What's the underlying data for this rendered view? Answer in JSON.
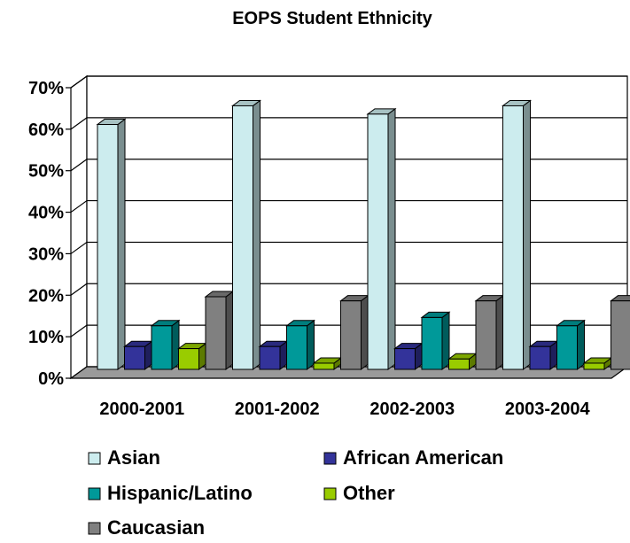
{
  "chart_data": {
    "type": "bar",
    "title": "EOPS Student Ethnicity",
    "categories": [
      "2000-2001",
      "2001-2002",
      "2002-2003",
      "2003-2004"
    ],
    "ylim": [
      0,
      70
    ],
    "yticks": [
      "0%",
      "10%",
      "20%",
      "30%",
      "40%",
      "50%",
      "60%",
      "70%"
    ],
    "grid": true,
    "three_d": true,
    "legend_position": "bottom",
    "series": [
      {
        "name": "Asian",
        "color": "#CCECEE",
        "values": [
          59,
          63.5,
          61.5,
          63.5
        ]
      },
      {
        "name": "African American",
        "color": "#33339A",
        "values": [
          5.5,
          5.5,
          5,
          5.5
        ]
      },
      {
        "name": "Hispanic/Latino",
        "color": "#009999",
        "values": [
          10.5,
          10.5,
          12.5,
          10.5
        ]
      },
      {
        "name": "Other",
        "color": "#99CC00",
        "values": [
          5,
          1.5,
          2.5,
          1.5
        ]
      },
      {
        "name": "Caucasian",
        "color": "#808080",
        "values": [
          17.5,
          16.5,
          16.5,
          16.5
        ]
      }
    ]
  }
}
